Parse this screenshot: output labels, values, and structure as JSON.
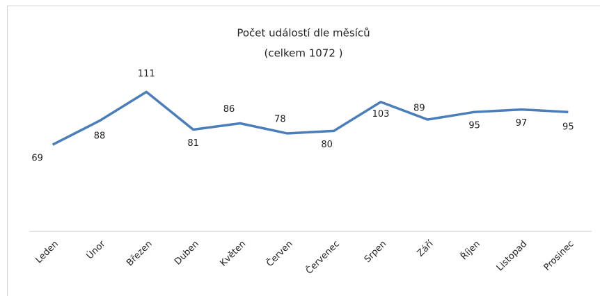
{
  "chart_data": {
    "type": "line",
    "title": "Počet událostí dle měsíců",
    "subtitle": "(celkem 1072 )",
    "categories": [
      "Leden",
      "Únor",
      "Březen",
      "Duben",
      "Květen",
      "Červen",
      "Červenec",
      "Srpen",
      "Září",
      "Říjen",
      "Listopad",
      "Prosinec"
    ],
    "values": [
      69,
      88,
      111,
      81,
      86,
      78,
      80,
      103,
      89,
      95,
      97,
      95
    ],
    "color": "#4a7ebb",
    "ylim": [
      0,
      120
    ]
  }
}
